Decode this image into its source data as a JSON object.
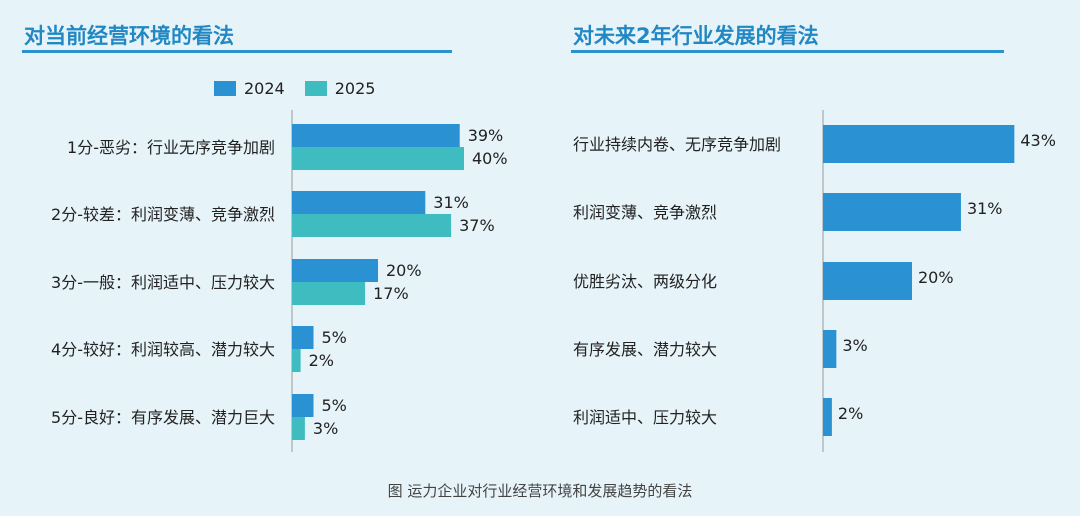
{
  "colors": {
    "series_2024": "#2a92d2",
    "series_2025": "#3ebcbf",
    "title": "#2288c4",
    "axis": "#9a9a9a"
  },
  "chart_data": [
    {
      "type": "bar",
      "orientation": "horizontal",
      "title": "对当前经营环境的看法",
      "categories": [
        "1分-恶劣：行业无序竞争加剧",
        "2分-较差：利润变薄、竞争激烈",
        "3分-一般：利润适中、压力较大",
        "4分-较好：利润较高、潜力较大",
        "5分-良好：有序发展、潜力巨大"
      ],
      "series": [
        {
          "name": "2024",
          "values": [
            39,
            31,
            20,
            5,
            5
          ],
          "labels": [
            "39%",
            "31%",
            "20%",
            "5%",
            "5%"
          ]
        },
        {
          "name": "2025",
          "values": [
            40,
            37,
            17,
            2,
            3
          ],
          "labels": [
            "40%",
            "37%",
            "17%",
            "2%",
            "3%"
          ]
        }
      ],
      "unit": "%",
      "legend": "top",
      "grid": false
    },
    {
      "type": "bar",
      "orientation": "horizontal",
      "title": "对未来2年行业发展的看法",
      "categories": [
        "行业持续内卷、无序竞争加剧",
        "利润变薄、竞争激烈",
        "优胜劣汰、两级分化",
        "有序发展、潜力较大",
        "利润适中、压力较大"
      ],
      "series": [
        {
          "values": [
            43,
            31,
            20,
            3,
            2
          ],
          "labels": [
            "43%",
            "31%",
            "20%",
            "3%",
            "2%"
          ]
        }
      ],
      "unit": "%",
      "grid": false
    }
  ],
  "legend": {
    "item_2024": "2024",
    "item_2025": "2025"
  },
  "caption": "图 运力企业对行业经营环境和发展趋势的看法"
}
